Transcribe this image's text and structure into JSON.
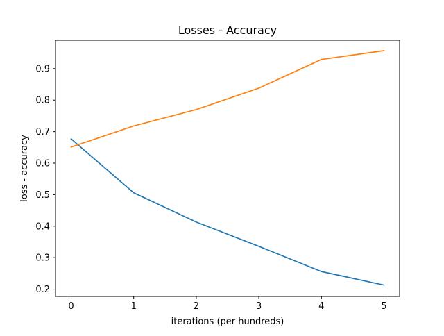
{
  "chart_data": {
    "type": "line",
    "title": "Losses - Accuracy",
    "xlabel": "iterations (per hundreds)",
    "ylabel": "loss - accuracy",
    "x": [
      0,
      1,
      2,
      3,
      4,
      5
    ],
    "xticks": [
      0,
      1,
      2,
      3,
      4,
      5
    ],
    "yticks": [
      0.2,
      0.3,
      0.4,
      0.5,
      0.6,
      0.7,
      0.8,
      0.9
    ],
    "xlim": [
      -0.25,
      5.25
    ],
    "ylim": [
      0.177,
      0.99
    ],
    "grid": false,
    "series": [
      {
        "values": [
          0.677,
          0.506,
          0.413,
          0.336,
          0.256,
          0.213
        ],
        "color": "#1f77b4"
      },
      {
        "values": [
          0.651,
          0.718,
          0.77,
          0.838,
          0.929,
          0.957
        ],
        "color": "#ff7f0e"
      }
    ]
  }
}
